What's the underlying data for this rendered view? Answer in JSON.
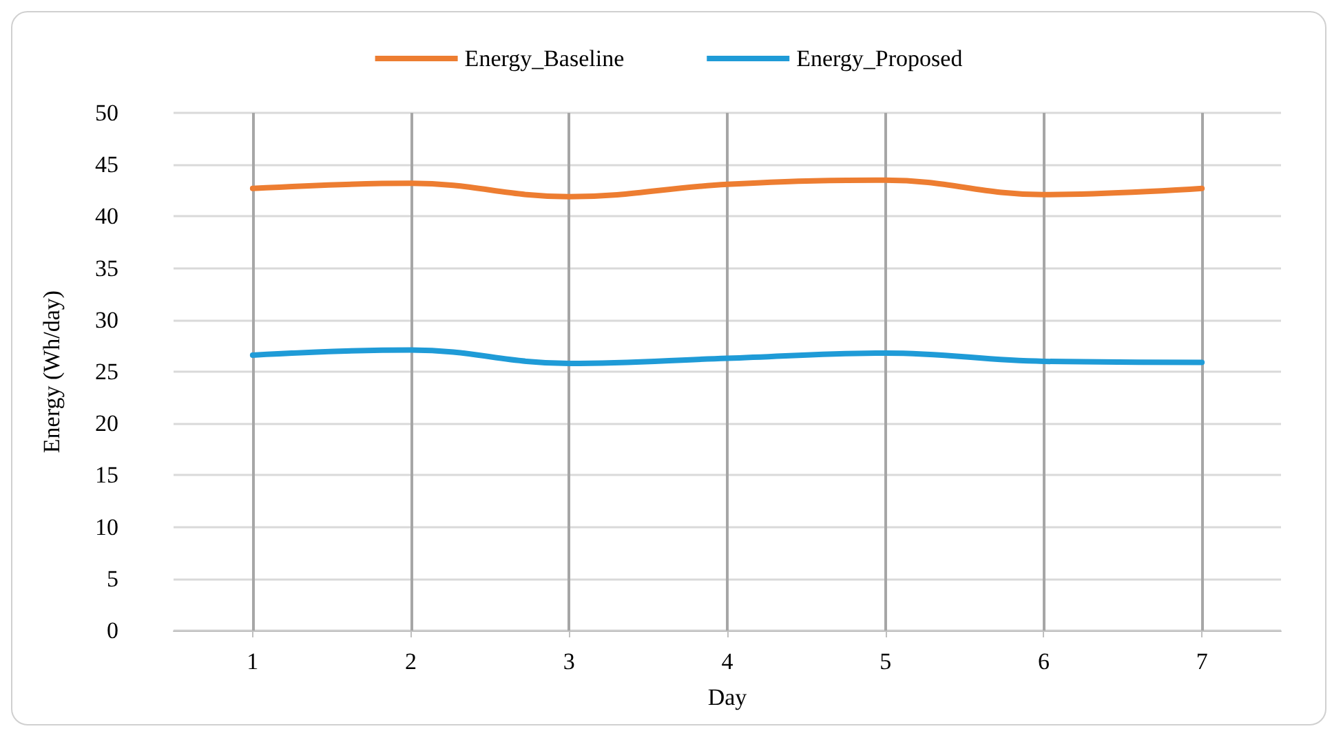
{
  "chart_data": {
    "type": "line",
    "xlabel": "Day",
    "ylabel": "Energy (Wh/day)",
    "x": [
      1,
      2,
      3,
      4,
      5,
      6,
      7
    ],
    "xlim": [
      0.5,
      7.5
    ],
    "xticks": [
      1,
      2,
      3,
      4,
      5,
      6,
      7
    ],
    "ylim": [
      0,
      50
    ],
    "yticks": [
      0,
      5,
      10,
      15,
      20,
      25,
      30,
      35,
      40,
      45,
      50
    ],
    "series": [
      {
        "name": "Energy_Baseline",
        "color": "#ed7d31",
        "values": [
          42.7,
          43.2,
          41.9,
          43.1,
          43.5,
          42.1,
          42.7
        ]
      },
      {
        "name": "Energy_Proposed",
        "color": "#1f9bd7",
        "values": [
          26.6,
          27.1,
          25.8,
          26.3,
          26.8,
          26.0,
          25.9
        ]
      }
    ],
    "grid": true,
    "legend": "top",
    "marker": "none",
    "line_style": "solid"
  }
}
